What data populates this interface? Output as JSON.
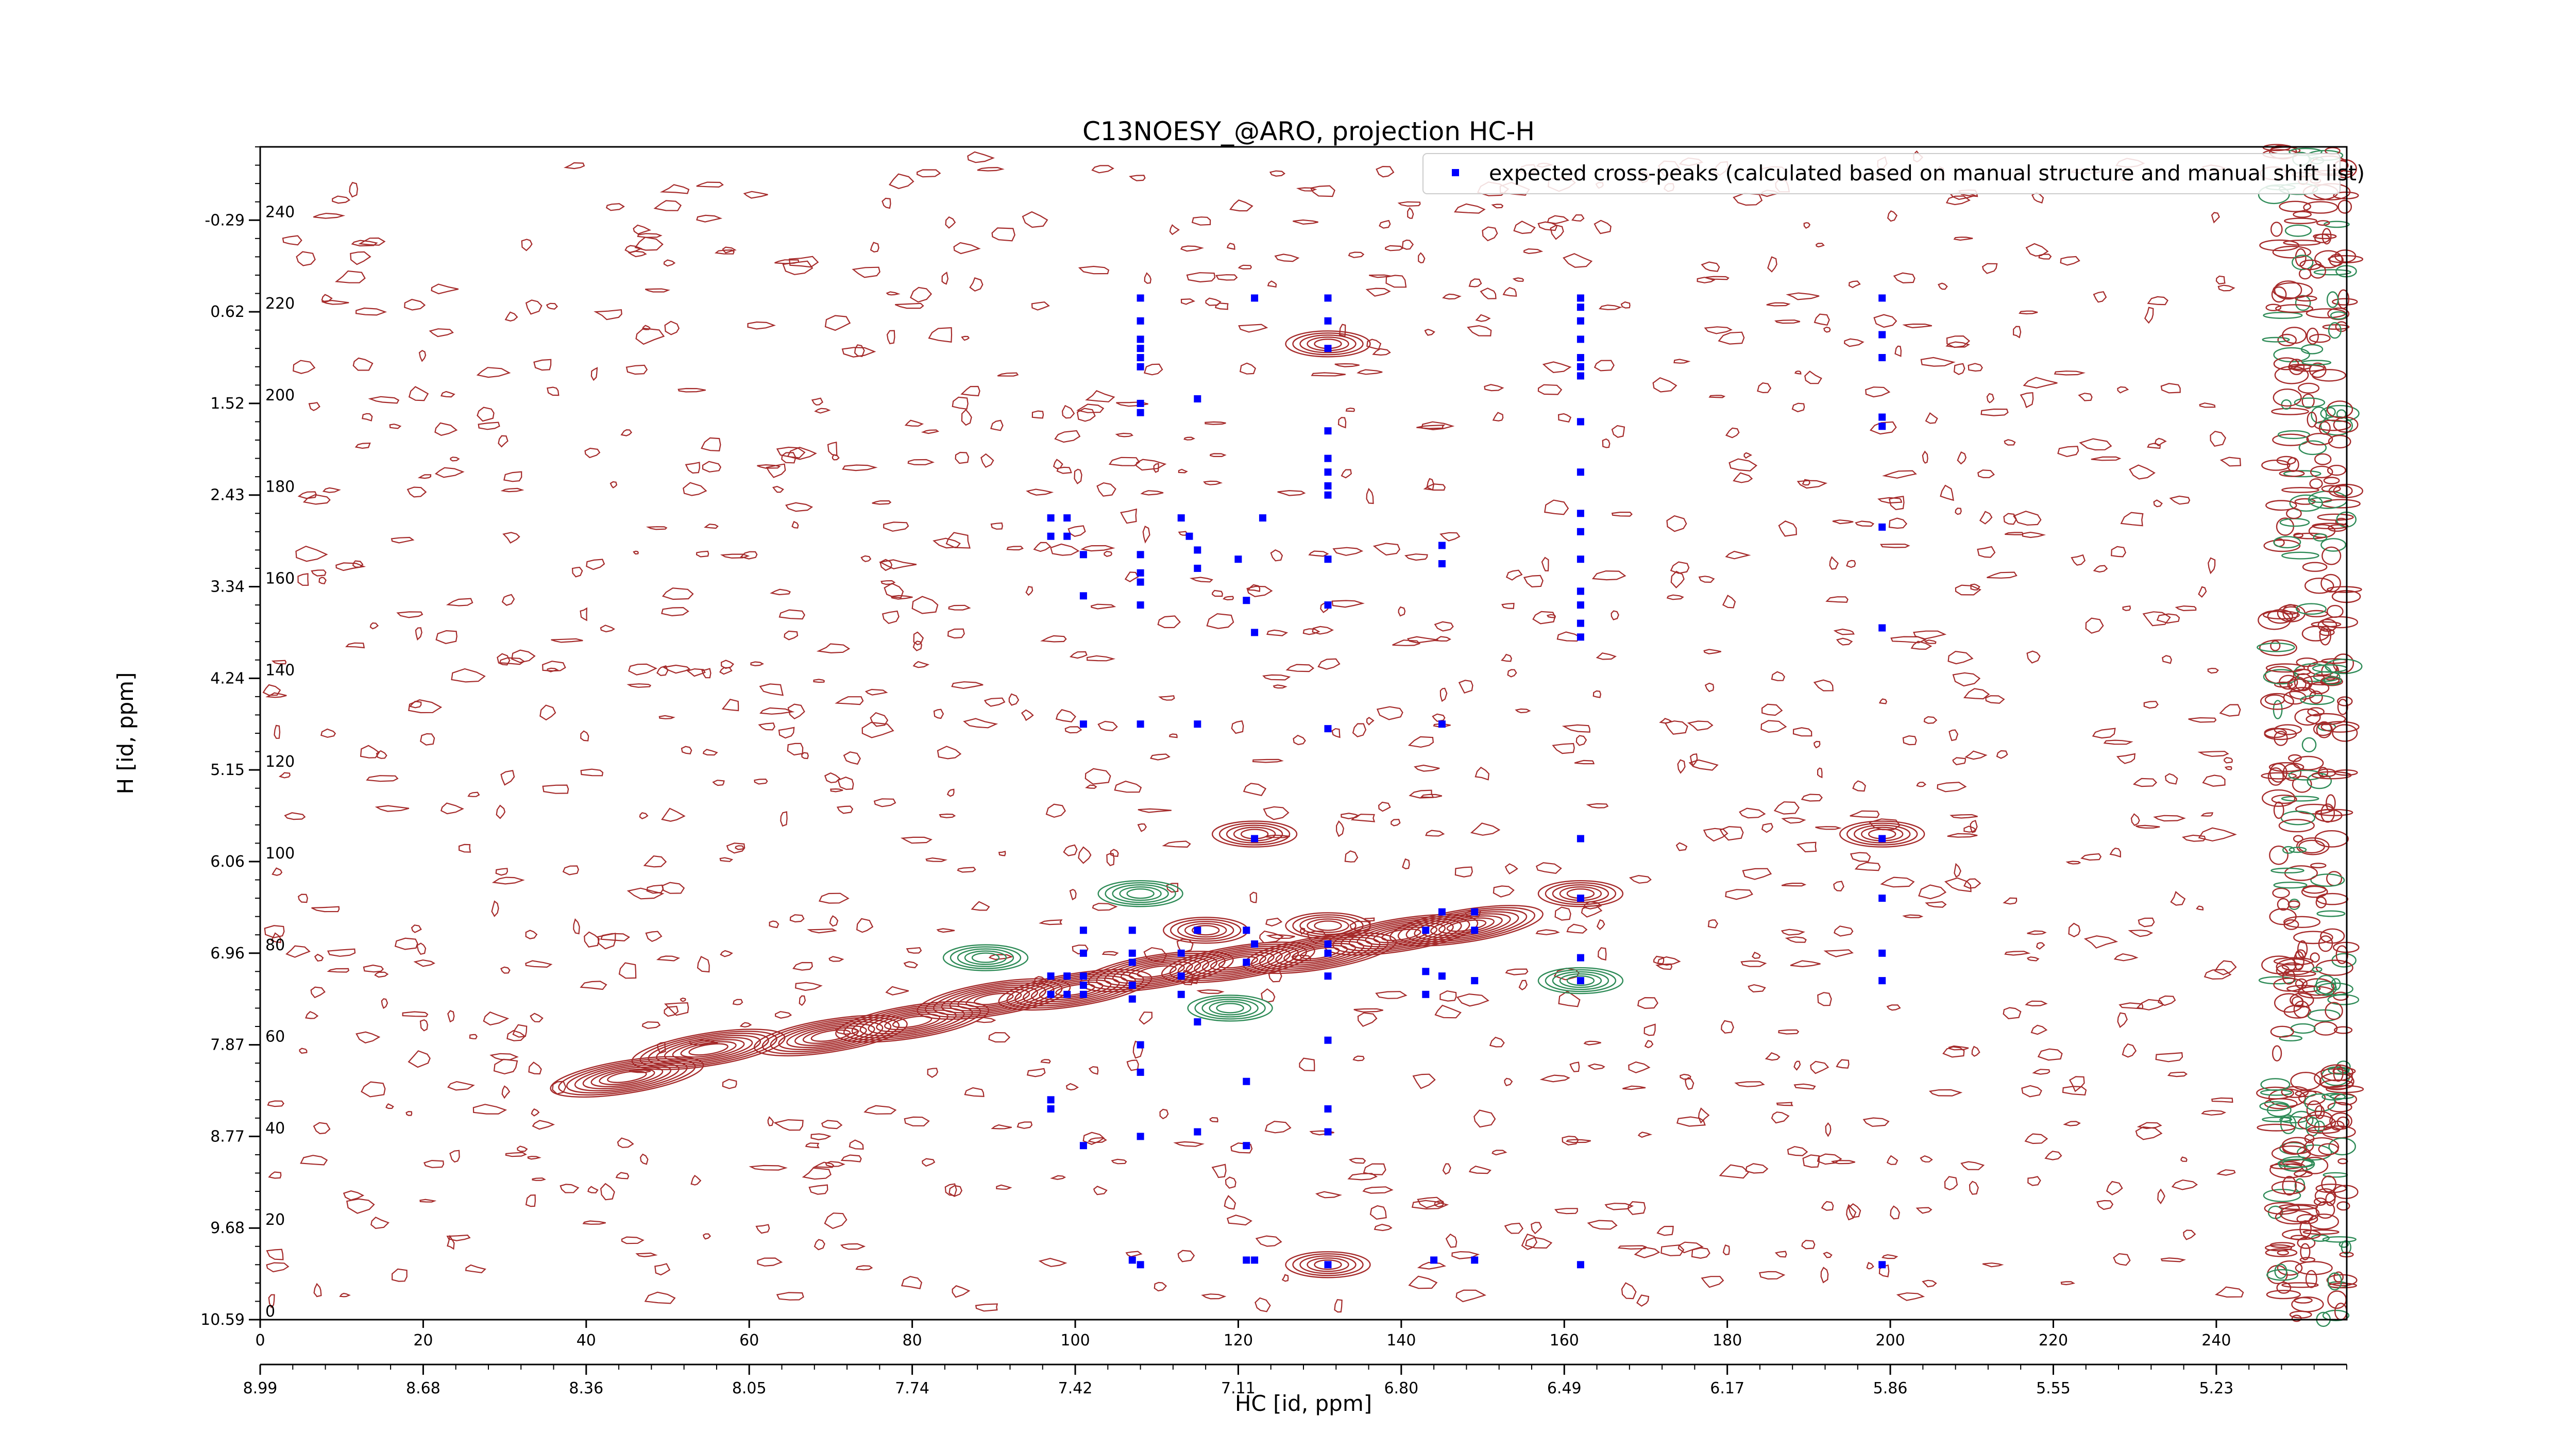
{
  "chart_data": {
    "type": "scatter",
    "title": "C13NOESY_@ARO, projection HC-H",
    "xlabel": "HC [id, ppm]",
    "ylabel": "H [id, ppm]",
    "xlim": [
      0,
      256
    ],
    "ylim": [
      0,
      256
    ],
    "x_ticks": [
      0,
      20,
      40,
      60,
      80,
      100,
      120,
      140,
      160,
      180,
      200,
      220,
      240
    ],
    "y_ticks": [
      0,
      20,
      40,
      60,
      80,
      100,
      120,
      140,
      160,
      180,
      200,
      220,
      240
    ],
    "x_ppm_ticks": [
      {
        "pos": 0,
        "label": "8.99"
      },
      {
        "pos": 20,
        "label": "8.68"
      },
      {
        "pos": 40,
        "label": "8.36"
      },
      {
        "pos": 60,
        "label": "8.05"
      },
      {
        "pos": 80,
        "label": "7.74"
      },
      {
        "pos": 100,
        "label": "7.42"
      },
      {
        "pos": 120,
        "label": "7.11"
      },
      {
        "pos": 140,
        "label": "6.80"
      },
      {
        "pos": 160,
        "label": "6.49"
      },
      {
        "pos": 180,
        "label": "6.17"
      },
      {
        "pos": 200,
        "label": "5.86"
      },
      {
        "pos": 220,
        "label": "5.55"
      },
      {
        "pos": 240,
        "label": "5.23"
      }
    ],
    "y_ppm_ticks": [
      {
        "pos": 0,
        "label": "10.59"
      },
      {
        "pos": 20,
        "label": "9.68"
      },
      {
        "pos": 40,
        "label": "8.77"
      },
      {
        "pos": 60,
        "label": "7.87"
      },
      {
        "pos": 80,
        "label": "6.96"
      },
      {
        "pos": 100,
        "label": "6.06"
      },
      {
        "pos": 120,
        "label": "5.15"
      },
      {
        "pos": 140,
        "label": "4.24"
      },
      {
        "pos": 160,
        "label": "3.34"
      },
      {
        "pos": 180,
        "label": "2.43"
      },
      {
        "pos": 200,
        "label": "1.52"
      },
      {
        "pos": 220,
        "label": "0.62"
      },
      {
        "pos": 240,
        "label": "-0.29"
      }
    ],
    "legend": {
      "position": "top-right",
      "label": "expected cross-peaks (calculated based on manual structure and manual shift list)"
    },
    "series": [
      {
        "name": "expected cross-peaks (calculated based on manual structure and manual shift list)",
        "color": "#0000ff",
        "points": [
          [
            108,
            223
          ],
          [
            108,
            218
          ],
          [
            108,
            214
          ],
          [
            108,
            212
          ],
          [
            108,
            210
          ],
          [
            108,
            208
          ],
          [
            108,
            200
          ],
          [
            108,
            198
          ],
          [
            108,
            167
          ],
          [
            108,
            161
          ],
          [
            108,
            156
          ],
          [
            108,
            163
          ],
          [
            108,
            130
          ],
          [
            108,
            60
          ],
          [
            108,
            54
          ],
          [
            108,
            40
          ],
          [
            108,
            12
          ],
          [
            107,
            85
          ],
          [
            107,
            80
          ],
          [
            107,
            78
          ],
          [
            107,
            73
          ],
          [
            107,
            70
          ],
          [
            107,
            13
          ],
          [
            101,
            85
          ],
          [
            101,
            80
          ],
          [
            101,
            75
          ],
          [
            101,
            73
          ],
          [
            101,
            71
          ],
          [
            101,
            167
          ],
          [
            101,
            158
          ],
          [
            101,
            130
          ],
          [
            101,
            38
          ],
          [
            97,
            175
          ],
          [
            97,
            171
          ],
          [
            97,
            75
          ],
          [
            97,
            71
          ],
          [
            97,
            48
          ],
          [
            97,
            46
          ],
          [
            99,
            175
          ],
          [
            99,
            171
          ],
          [
            99,
            75
          ],
          [
            99,
            71
          ],
          [
            113,
            175
          ],
          [
            114,
            171
          ],
          [
            113,
            80
          ],
          [
            113,
            75
          ],
          [
            113,
            71
          ],
          [
            115,
            201
          ],
          [
            115,
            164
          ],
          [
            115,
            168
          ],
          [
            115,
            130
          ],
          [
            115,
            85
          ],
          [
            115,
            65
          ],
          [
            115,
            41
          ],
          [
            120,
            166
          ],
          [
            121,
            157
          ],
          [
            121,
            85
          ],
          [
            121,
            78
          ],
          [
            121,
            52
          ],
          [
            121,
            38
          ],
          [
            121,
            13
          ],
          [
            122,
            223
          ],
          [
            122,
            150
          ],
          [
            122,
            105
          ],
          [
            122,
            82
          ],
          [
            122,
            13
          ],
          [
            123,
            175
          ],
          [
            131,
            223
          ],
          [
            131,
            218
          ],
          [
            131,
            212
          ],
          [
            131,
            194
          ],
          [
            131,
            188
          ],
          [
            131,
            185
          ],
          [
            131,
            182
          ],
          [
            131,
            180
          ],
          [
            131,
            166
          ],
          [
            131,
            156
          ],
          [
            131,
            129
          ],
          [
            131,
            82
          ],
          [
            131,
            80
          ],
          [
            131,
            75
          ],
          [
            131,
            61
          ],
          [
            131,
            46
          ],
          [
            131,
            41
          ],
          [
            131,
            12
          ],
          [
            143,
            85
          ],
          [
            143,
            76
          ],
          [
            143,
            71
          ],
          [
            144,
            13
          ],
          [
            145,
            169
          ],
          [
            145,
            165
          ],
          [
            145,
            130
          ],
          [
            145,
            75
          ],
          [
            145,
            89
          ],
          [
            149,
            89
          ],
          [
            149,
            85
          ],
          [
            149,
            74
          ],
          [
            149,
            13
          ],
          [
            162,
            223
          ],
          [
            162,
            221
          ],
          [
            162,
            218
          ],
          [
            162,
            214
          ],
          [
            162,
            210
          ],
          [
            162,
            206
          ],
          [
            162,
            208
          ],
          [
            162,
            196
          ],
          [
            162,
            185
          ],
          [
            162,
            176
          ],
          [
            162,
            172
          ],
          [
            162,
            166
          ],
          [
            162,
            159
          ],
          [
            162,
            156
          ],
          [
            162,
            152
          ],
          [
            162,
            149
          ],
          [
            162,
            105
          ],
          [
            162,
            92
          ],
          [
            162,
            79
          ],
          [
            162,
            74
          ],
          [
            162,
            12
          ],
          [
            199,
            223
          ],
          [
            199,
            215
          ],
          [
            199,
            210
          ],
          [
            199,
            197
          ],
          [
            199,
            195
          ],
          [
            199,
            173
          ],
          [
            199,
            151
          ],
          [
            199,
            105
          ],
          [
            199,
            92
          ],
          [
            199,
            80
          ],
          [
            199,
            74
          ],
          [
            199,
            12
          ]
        ]
      }
    ],
    "contour_levels": {
      "positive_color": "#a52a2a",
      "negative_color": "#2e8b57"
    }
  }
}
